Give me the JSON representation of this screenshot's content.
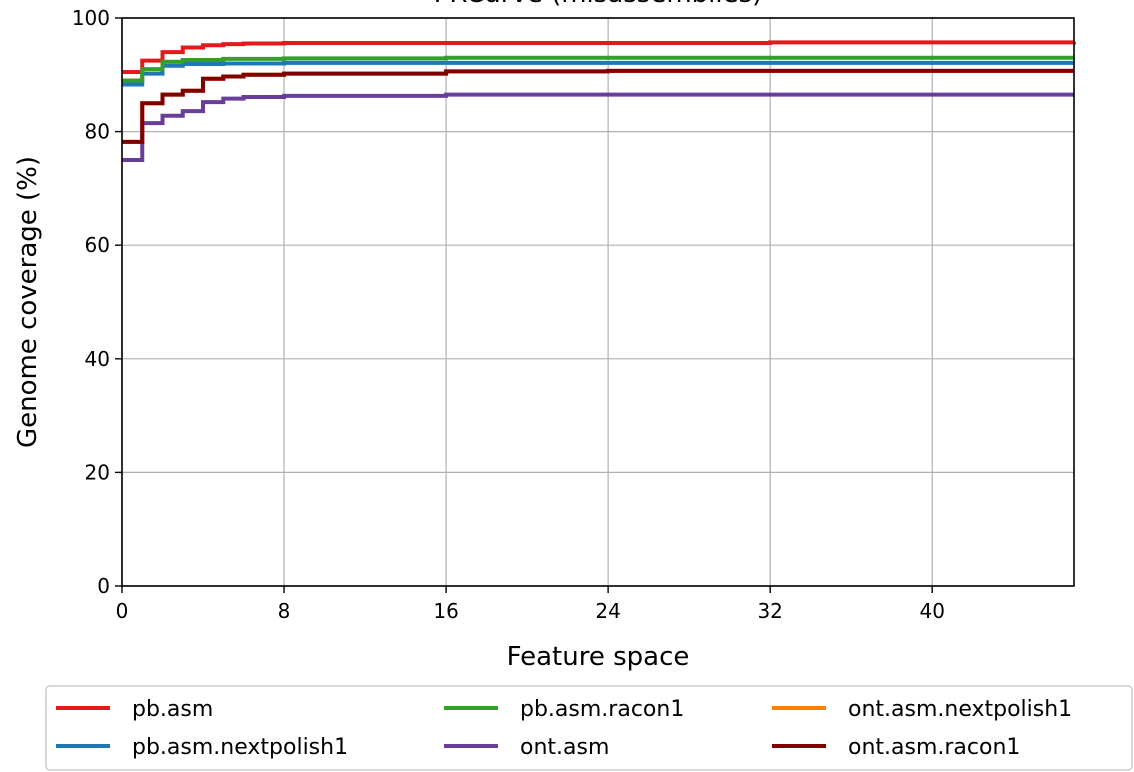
{
  "chart_data": {
    "type": "line",
    "step": true,
    "title": "PRCurve (misassemblies)",
    "xlabel": "Feature space",
    "ylabel": "Genome coverage (%)",
    "xlim": [
      0,
      47
    ],
    "ylim": [
      0,
      100
    ],
    "xticks": [
      0,
      8,
      16,
      24,
      32,
      40
    ],
    "yticks": [
      0,
      20,
      40,
      60,
      80,
      100
    ],
    "grid": true,
    "legend_position": "bottom",
    "series": [
      {
        "name": "pb.asm",
        "color": "#e31a1c",
        "x": [
          0,
          1,
          2,
          3,
          4,
          5,
          6,
          8,
          12,
          16,
          24,
          32,
          40,
          47
        ],
        "y": [
          90.5,
          92.5,
          94,
          94.8,
          95.2,
          95.4,
          95.5,
          95.6,
          95.6,
          95.6,
          95.6,
          95.7,
          95.7,
          95.8
        ]
      },
      {
        "name": "pb.asm.nextpolish1",
        "color": "#1f78b4",
        "x": [
          0,
          1,
          2,
          3,
          5,
          8,
          16,
          24,
          32,
          40,
          47
        ],
        "y": [
          88.3,
          90.2,
          91.6,
          91.9,
          92.0,
          92.1,
          92.1,
          92.1,
          92.1,
          92.1,
          92.1
        ]
      },
      {
        "name": "pb.asm.racon1",
        "color": "#33a02c",
        "x": [
          0,
          1,
          2,
          3,
          5,
          8,
          16,
          24,
          32,
          40,
          47
        ],
        "y": [
          89.0,
          91.0,
          92.3,
          92.6,
          92.8,
          92.9,
          93.0,
          93.0,
          93.0,
          93.0,
          93.0
        ]
      },
      {
        "name": "ont.asm.nextpolish1",
        "color": "#ff7f00",
        "x": [
          0,
          1,
          2,
          3,
          4,
          5,
          6,
          8,
          16,
          24,
          32,
          40,
          47
        ],
        "y": [
          78.2,
          85.0,
          86.5,
          87.2,
          89.3,
          89.7,
          90.0,
          90.2,
          90.6,
          90.7,
          90.7,
          90.7,
          90.7
        ]
      },
      {
        "name": "ont.asm",
        "color": "#6a3d9a",
        "x": [
          0,
          1,
          2,
          3,
          4,
          5,
          6,
          8,
          16,
          24,
          32,
          40,
          47
        ],
        "y": [
          75.0,
          81.5,
          82.8,
          83.6,
          85.2,
          85.8,
          86.1,
          86.3,
          86.5,
          86.5,
          86.5,
          86.5,
          86.5
        ]
      },
      {
        "name": "ont.asm.racon1",
        "color": "#800000",
        "x": [
          0,
          1,
          2,
          3,
          4,
          5,
          6,
          8,
          16,
          24,
          32,
          40,
          47
        ],
        "y": [
          78.2,
          85.0,
          86.5,
          87.2,
          89.3,
          89.7,
          90.0,
          90.2,
          90.6,
          90.7,
          90.7,
          90.7,
          90.7
        ]
      }
    ],
    "legend_order": [
      "pb.asm",
      "pb.asm.racon1",
      "ont.asm.nextpolish1",
      "pb.asm.nextpolish1",
      "ont.asm",
      "ont.asm.racon1"
    ]
  }
}
